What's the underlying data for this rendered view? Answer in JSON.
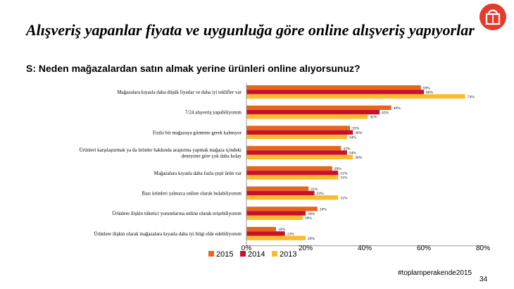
{
  "slide": {
    "title": "Alışveriş yapanlar fiyata ve uygunluğa göre online alışveriş yapıyorlar",
    "subtitle": "S: Neden mağazalardan satın almak yerine ürünleri online alıyorsunuz?",
    "hashtag": "#toplamperakende2015",
    "page_number": "34"
  },
  "colors": {
    "2015": "#e8661c",
    "2014": "#c8102e",
    "2013": "#fbbb2c",
    "logo": "#e33c2c"
  },
  "chart_data": {
    "type": "bar",
    "orientation": "horizontal",
    "categories": [
      [
        "Mağazalara kıyasla daha düşük fiyatlar ve daha iyi teklifler var"
      ],
      [
        "7/24 alışveriş yapabiliyorum"
      ],
      [
        "Fiziki bir mağazaya gitmeme gerek kalmıyor"
      ],
      [
        "Ürünleri karşılaştırmak ya da ürünler hakkında araştırma yapmak mağaza içindeki",
        "deneyime göre çok daha kolay"
      ],
      [
        "Mağazalara kıyasla daha fazla çeşit ürün var"
      ],
      [
        "Bazı ürünleri yalnızca online olarak bulabiliyorum"
      ],
      [
        "Ürünlere ilişkin tüketici yorumlarına online olarak erişebiliyorum"
      ],
      [
        "Ürünlere ilişkin olarak mağazalara kıyasla daha iyi bilgi elde edebiliyorum"
      ]
    ],
    "series": [
      {
        "name": "2015",
        "values": [
          59,
          49,
          35,
          32,
          29,
          21,
          24,
          10
        ]
      },
      {
        "name": "2014",
        "values": [
          60,
          45,
          36,
          34,
          31,
          23,
          20,
          13
        ]
      },
      {
        "name": "2013",
        "values": [
          74,
          41,
          34,
          36,
          31,
          31,
          19,
          20
        ]
      }
    ],
    "value_suffix": "%",
    "xlim": [
      0,
      80
    ],
    "ticks": [
      0,
      20,
      40,
      60,
      80
    ],
    "tick_labels": [
      "0%",
      "20%",
      "40%",
      "60%",
      "80%"
    ],
    "legend": [
      "2015",
      "2014",
      "2013"
    ],
    "legend_position": "bottom",
    "grid": false
  }
}
